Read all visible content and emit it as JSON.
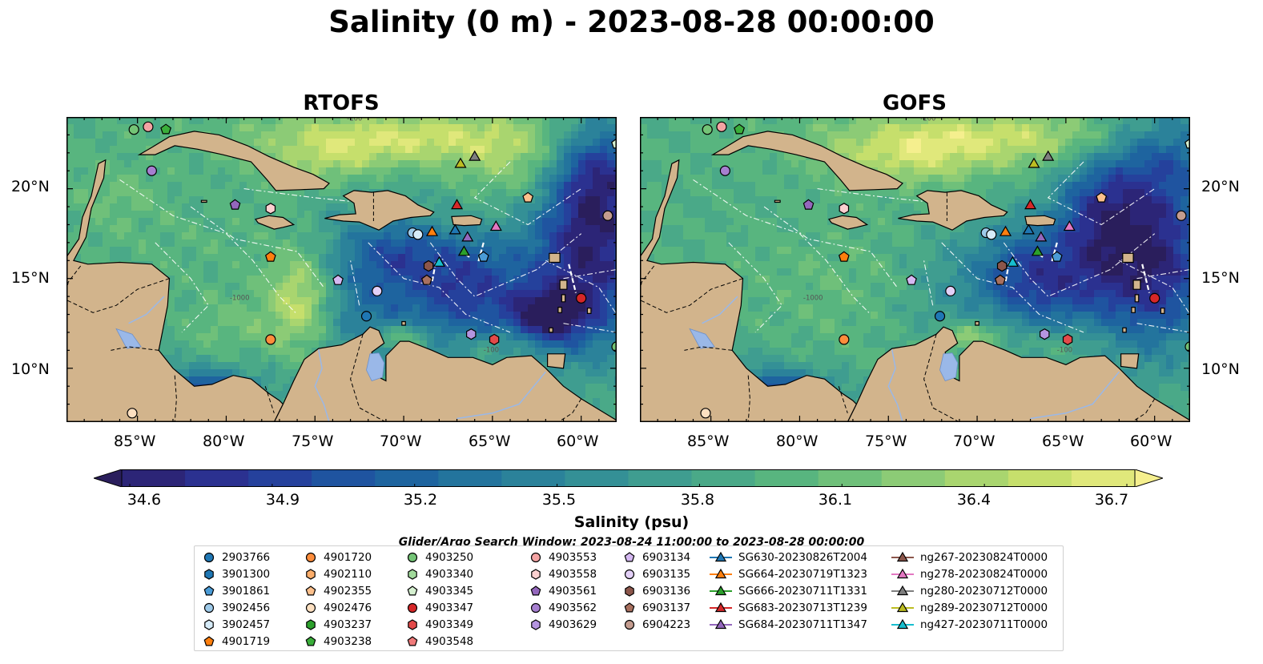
{
  "title": "Salinity (0 m) - 2023-08-28 00:00:00",
  "panels": [
    {
      "title": "RTOFS",
      "y_label_side": "left"
    },
    {
      "title": "GOFS",
      "y_label_side": "right"
    }
  ],
  "map": {
    "lon_range": [
      -89,
      -58
    ],
    "lat_range": [
      7,
      24
    ],
    "lon_ticks": [
      "85°W",
      "80°W",
      "75°W",
      "70°W",
      "65°W",
      "60°W"
    ],
    "lat_ticks": [
      "20°N",
      "15°N",
      "10°N"
    ],
    "contour_labels": [
      "-100",
      "-1000"
    ]
  },
  "colorbar": {
    "label": "Salinity (psu)",
    "ticks": [
      "34.6",
      "34.9",
      "35.2",
      "35.5",
      "35.8",
      "36.1",
      "36.4",
      "36.7"
    ],
    "range": [
      34.6,
      36.7
    ],
    "extend": "both",
    "colormap": [
      "#2a1e5c",
      "#2c2577",
      "#2b3190",
      "#25419c",
      "#1f54a0",
      "#1e649f",
      "#23749d",
      "#2b829a",
      "#349096",
      "#3f9d90",
      "#4aa988",
      "#58b57f",
      "#6fc07a",
      "#8ccb76",
      "#a9d56f",
      "#c6df6c",
      "#e0e87b",
      "#f5ef8e"
    ]
  },
  "search_window": "Glider/Argo Search Window: 2023-08-24 11:00:00 to 2023-08-28 00:00:00",
  "legend": {
    "columns": [
      [
        {
          "label": "2903766",
          "marker": "circle",
          "color": "#1f77b4"
        },
        {
          "label": "3901300",
          "marker": "hexagon",
          "color": "#1f77b4"
        },
        {
          "label": "3901861",
          "marker": "pentagon",
          "color": "#4a9bd6"
        },
        {
          "label": "3902456",
          "marker": "circle",
          "color": "#9ecae9"
        },
        {
          "label": "3902457",
          "marker": "hexagon",
          "color": "#d6ebf8"
        },
        {
          "label": "4901719",
          "marker": "pentagon",
          "color": "#ff7f0e"
        }
      ],
      [
        {
          "label": "4901720",
          "marker": "circle",
          "color": "#fd8d3c"
        },
        {
          "label": "4902110",
          "marker": "hexagon",
          "color": "#fdae6b"
        },
        {
          "label": "4902355",
          "marker": "pentagon",
          "color": "#fdc08c"
        },
        {
          "label": "4902476",
          "marker": "circle",
          "color": "#fde0c1"
        },
        {
          "label": "4903237",
          "marker": "hexagon",
          "color": "#2ca02c"
        },
        {
          "label": "4903238",
          "marker": "pentagon",
          "color": "#3aae3a"
        }
      ],
      [
        {
          "label": "4903250",
          "marker": "circle",
          "color": "#74c476"
        },
        {
          "label": "4903340",
          "marker": "hexagon",
          "color": "#a1d99b"
        },
        {
          "label": "4903345",
          "marker": "pentagon",
          "color": "#d5f0d0"
        },
        {
          "label": "4903347",
          "marker": "circle",
          "color": "#d62728"
        },
        {
          "label": "4903349",
          "marker": "hexagon",
          "color": "#e34a4a"
        },
        {
          "label": "4903548",
          "marker": "pentagon",
          "color": "#f07a7a"
        }
      ],
      [
        {
          "label": "4903553",
          "marker": "circle",
          "color": "#f4a3a3"
        },
        {
          "label": "4903558",
          "marker": "hexagon",
          "color": "#fbd0d0"
        },
        {
          "label": "4903561",
          "marker": "pentagon",
          "color": "#9467bd"
        },
        {
          "label": "4903562",
          "marker": "circle",
          "color": "#a67fd0"
        },
        {
          "label": "4903629",
          "marker": "hexagon",
          "color": "#b595e0"
        }
      ],
      [
        {
          "label": "6903134",
          "marker": "pentagon",
          "color": "#d5b8f2"
        },
        {
          "label": "6903135",
          "marker": "circle",
          "color": "#e3d0f7"
        },
        {
          "label": "6903136",
          "marker": "hexagon",
          "color": "#8c564b"
        },
        {
          "label": "6903137",
          "marker": "pentagon",
          "color": "#a8705f"
        },
        {
          "label": "6904223",
          "marker": "circle",
          "color": "#c49c8f"
        }
      ],
      [
        {
          "label": "SG630-20230826T2004",
          "marker": "line-triangle",
          "color": "#1f77b4"
        },
        {
          "label": "SG664-20230719T1323",
          "marker": "line-triangle",
          "color": "#ff7f0e"
        },
        {
          "label": "SG666-20230711T1331",
          "marker": "line-triangle",
          "color": "#2ca02c"
        },
        {
          "label": "SG683-20230713T1239",
          "marker": "line-triangle",
          "color": "#d62728"
        },
        {
          "label": "SG684-20230711T1347",
          "marker": "line-triangle",
          "color": "#9467bd"
        }
      ],
      [
        {
          "label": "ng267-20230824T0000",
          "marker": "line-triangle",
          "color": "#8c564b"
        },
        {
          "label": "ng278-20230824T0000",
          "marker": "line-triangle",
          "color": "#e377c2"
        },
        {
          "label": "ng280-20230712T0000",
          "marker": "line-triangle",
          "color": "#7f7f7f"
        },
        {
          "label": "ng289-20230712T0000",
          "marker": "line-triangle",
          "color": "#bcbd22"
        },
        {
          "label": "ng427-20230711T0000",
          "marker": "line-triangle",
          "color": "#17becf"
        }
      ]
    ]
  }
}
